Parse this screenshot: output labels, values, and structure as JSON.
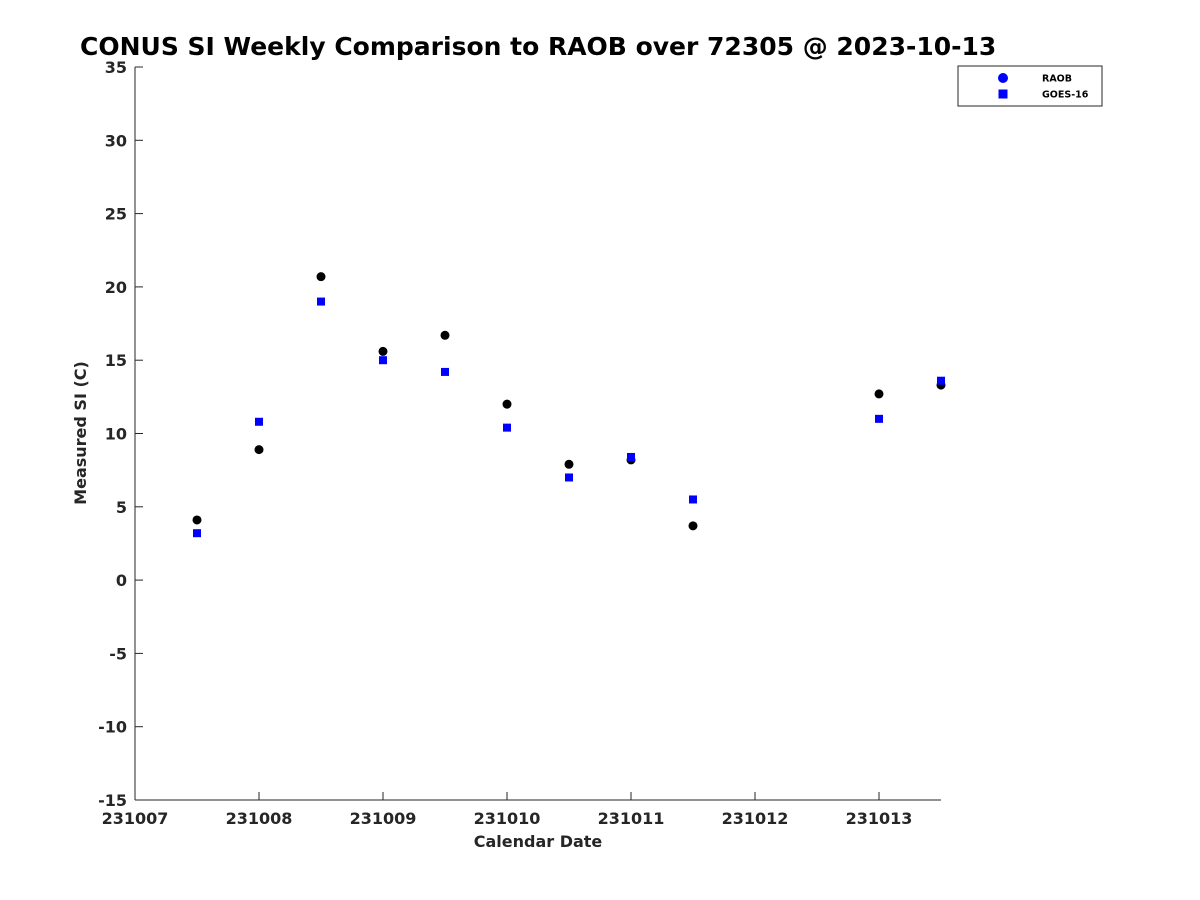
{
  "chart_data": {
    "type": "scatter",
    "title": "CONUS SI Weekly Comparison to RAOB over 72305 @ 2023-10-13",
    "xlabel": "Calendar Date",
    "ylabel": "Measured SI (C)",
    "xlim": [
      231007,
      231013.5
    ],
    "ylim": [
      -15,
      35
    ],
    "xticks": [
      231007,
      231008,
      231009,
      231010,
      231011,
      231012,
      231013
    ],
    "xtick_labels": [
      "231007",
      "231008",
      "231009",
      "231010",
      "231011",
      "231012",
      "231013"
    ],
    "yticks": [
      35,
      30,
      25,
      20,
      15,
      10,
      5,
      0,
      -5,
      -10,
      -15
    ],
    "ytick_labels": [
      "35",
      "30",
      "25",
      "20",
      "15",
      "10",
      "5",
      "0",
      "-5",
      "-10",
      "-15"
    ],
    "grid": false,
    "legend_position": "top-right",
    "series": [
      {
        "name": "RAOB",
        "marker": "circle",
        "color": "#000000",
        "legend_color": "#0000ff",
        "x": [
          231007.5,
          231008,
          231008.5,
          231009,
          231009.5,
          231010,
          231010.5,
          231011,
          231011.5,
          231013,
          231013.5
        ],
        "y": [
          4.1,
          8.9,
          20.7,
          15.6,
          16.7,
          12.0,
          7.9,
          8.2,
          3.7,
          12.7,
          13.3
        ]
      },
      {
        "name": "GOES-16",
        "marker": "square",
        "color": "#0000ff",
        "legend_color": "#0000ff",
        "x": [
          231007.5,
          231008,
          231008.5,
          231009,
          231009.5,
          231010,
          231010.5,
          231011,
          231011.5,
          231013,
          231013.5
        ],
        "y": [
          3.2,
          10.8,
          19.0,
          15.0,
          14.2,
          10.4,
          7.0,
          8.4,
          5.5,
          11.0,
          13.6
        ]
      }
    ]
  }
}
